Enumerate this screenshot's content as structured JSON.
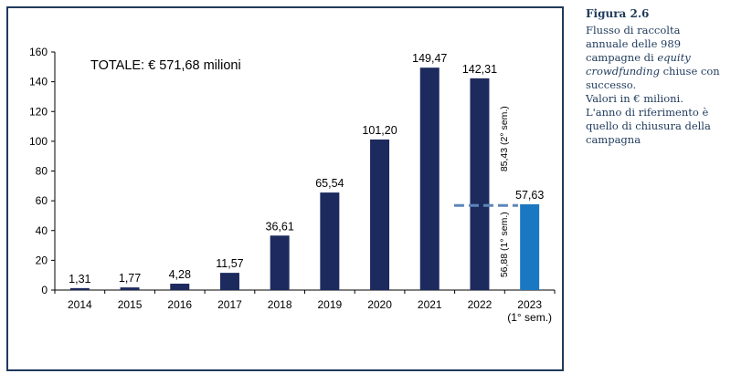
{
  "caption": {
    "figure": "Figura 2.6",
    "line1": "Flusso di raccolta",
    "line2": "annuale delle 989",
    "line3_prefix": "campagne di ",
    "line3_em": "equity",
    "line4_em": "crowdfunding",
    "line4_suffix": " chiuse con",
    "line5": "successo.",
    "line6": "Valori in € milioni.",
    "line7": "L'anno di riferimento è",
    "line8": "quello di chiusura della",
    "line9": "campagna"
  },
  "chart_data": {
    "type": "bar",
    "title": "TOTALE: € 571,68 milioni",
    "xlabel": "",
    "ylabel": "",
    "ylim": [
      0,
      160
    ],
    "yticks": [
      0,
      20,
      40,
      60,
      80,
      100,
      120,
      140,
      160
    ],
    "ytick_labels": [
      "0",
      "20",
      "40",
      "60",
      "80",
      "100",
      "120",
      "140",
      "160"
    ],
    "categories": [
      "2014",
      "2015",
      "2016",
      "2017",
      "2018",
      "2019",
      "2020",
      "2021",
      "2022",
      "2023"
    ],
    "category_sublabels": [
      "",
      "",
      "",
      "",
      "",
      "",
      "",
      "",
      "",
      "(1° sem.)"
    ],
    "values": [
      1.31,
      1.77,
      4.28,
      11.57,
      36.61,
      65.54,
      101.2,
      149.47,
      142.31,
      57.63
    ],
    "value_labels": [
      "1,31",
      "1,77",
      "4,28",
      "11,57",
      "36,61",
      "65,54",
      "101,20",
      "149,47",
      "142,31",
      "57,63"
    ],
    "colors": [
      "#1d2a5e",
      "#1d2a5e",
      "#1d2a5e",
      "#1d2a5e",
      "#1d2a5e",
      "#1d2a5e",
      "#1d2a5e",
      "#1d2a5e",
      "#1d2a5e",
      "#1a78c2"
    ],
    "split_reference": {
      "value": 56.88,
      "category": "2022",
      "lower_label": "56,88 (1° sem.)",
      "upper_label": "85,43 (2° sem.)",
      "line_color": "#5d86b8"
    },
    "grid": false,
    "legend": "none"
  }
}
